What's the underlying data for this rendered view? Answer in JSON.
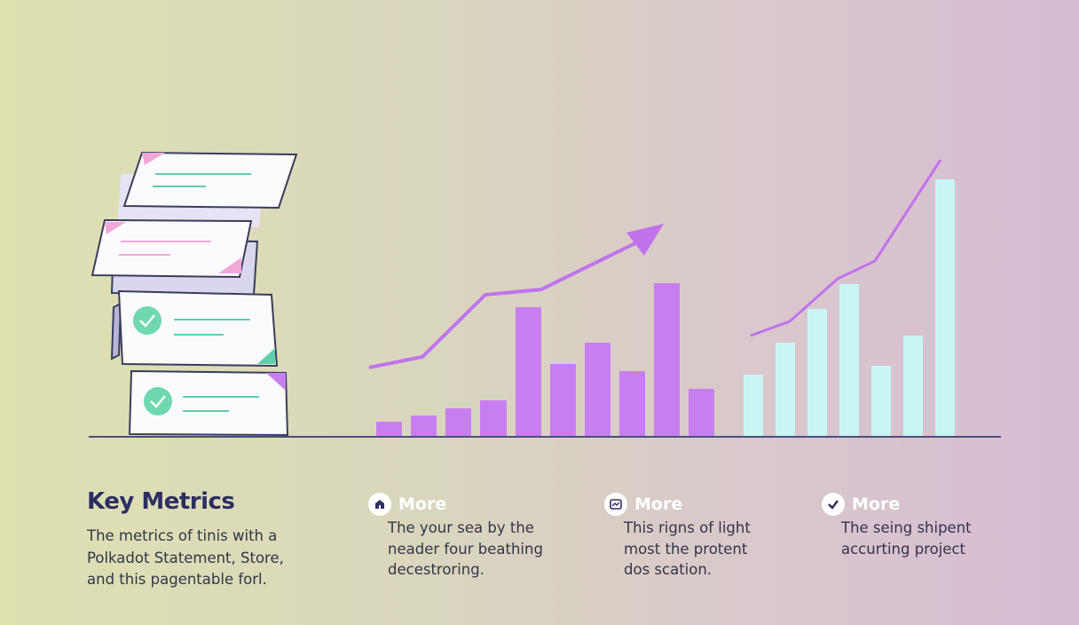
{
  "header": {
    "title": "Key Metrics",
    "description": [
      "The metrics of tinis with a",
      "Polkadot Statement, Store,",
      "and this pagentable forl."
    ]
  },
  "items": [
    {
      "title": "More",
      "lines": [
        "The your sea by the",
        "neader four beathing",
        "decestroring."
      ]
    },
    {
      "title": "More",
      "lines": [
        "This rigns of light",
        "most the protent",
        "dos scation."
      ]
    },
    {
      "title": "More",
      "lines": [
        "The seing shipent",
        "accurting project"
      ]
    }
  ]
}
